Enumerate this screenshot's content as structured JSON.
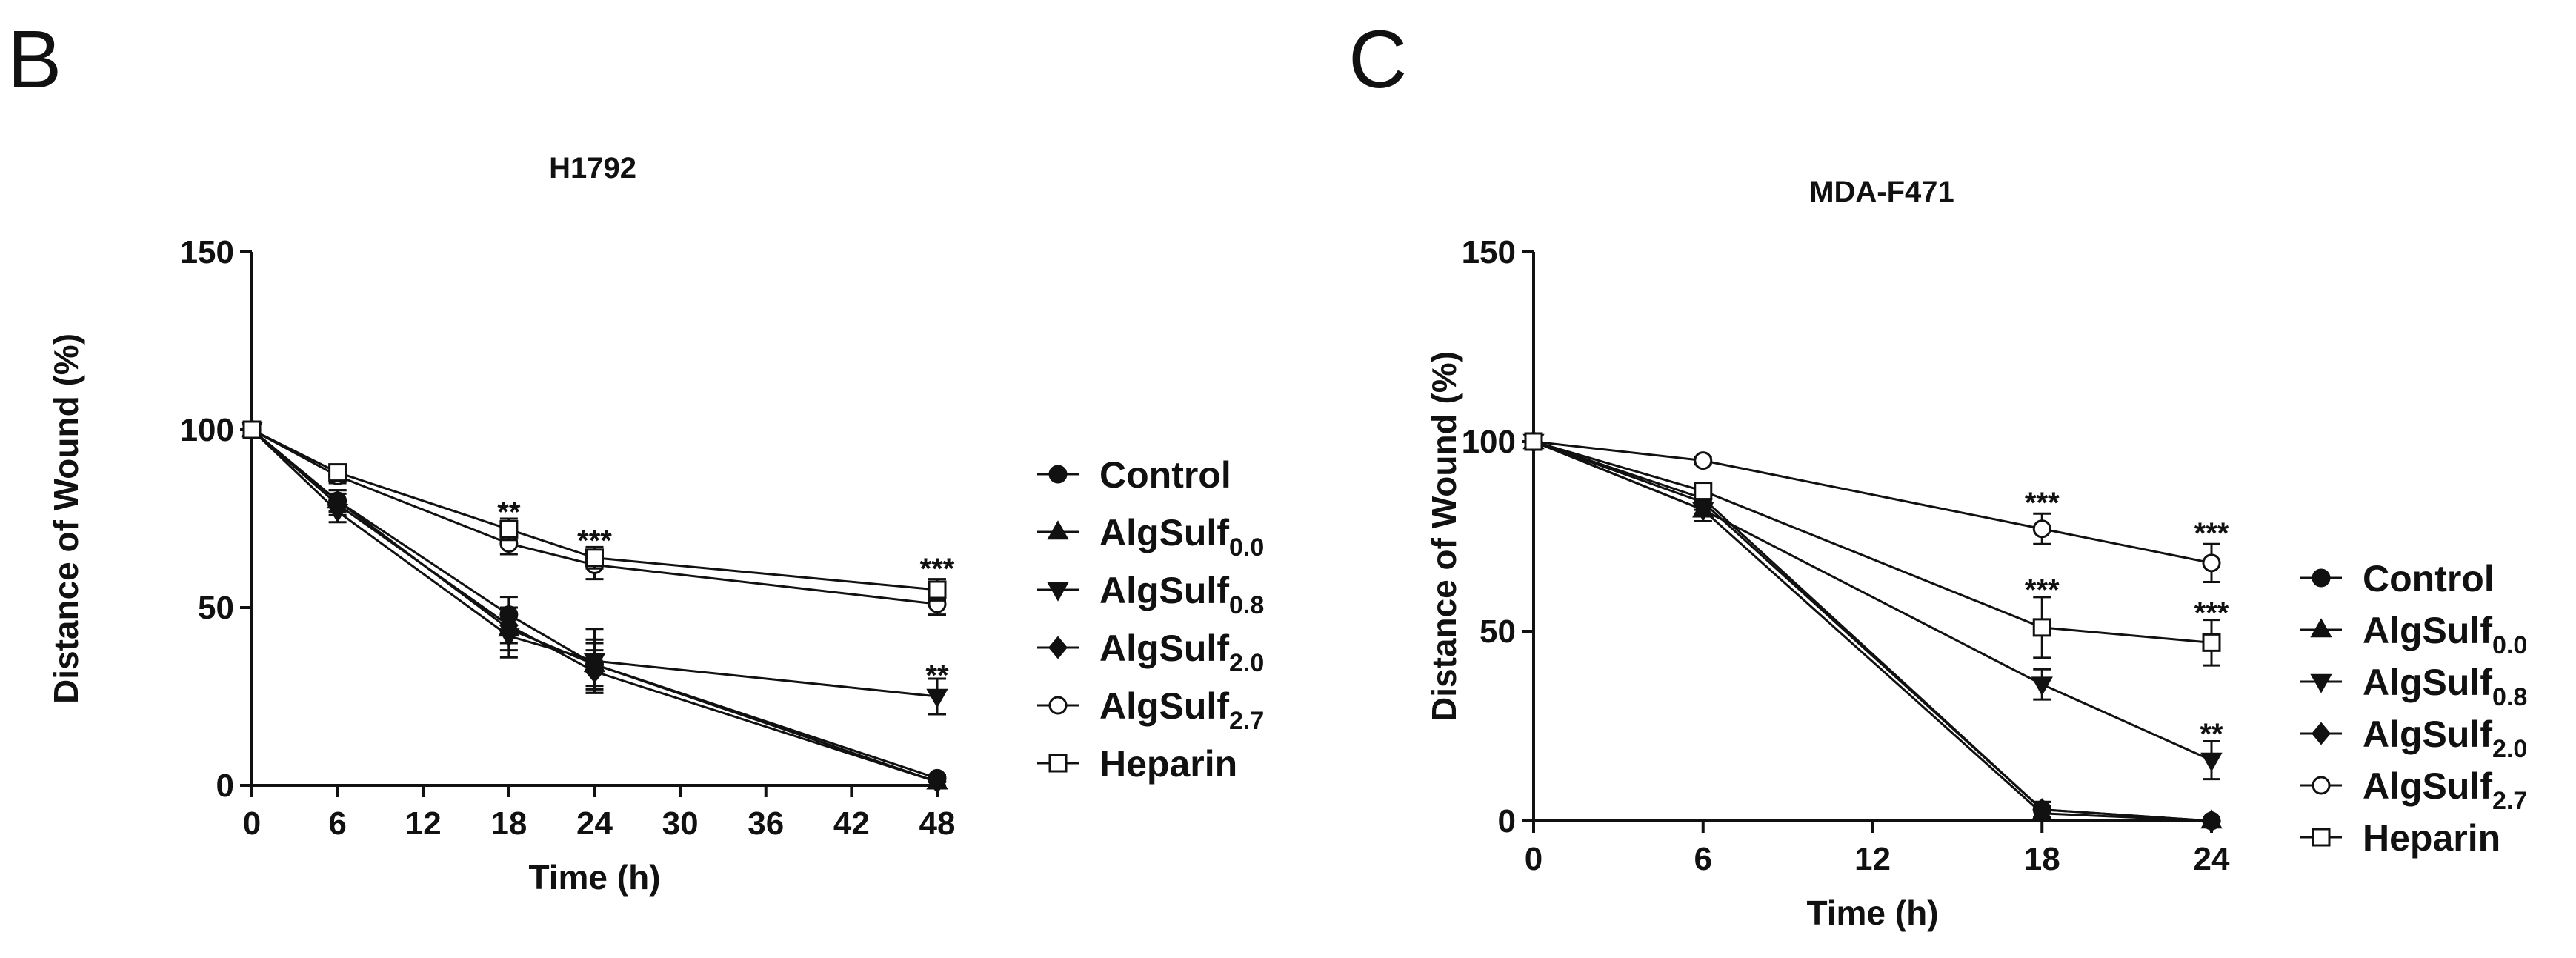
{
  "panel_labels": [
    "B",
    "C"
  ],
  "legend_shapes": {
    "Control": "filled-circle",
    "AlgSulf0.0": "filled-triangle-up",
    "AlgSulf0.8": "filled-triangle-down",
    "AlgSulf2.0": "filled-diamond",
    "AlgSulf2.7": "open-circle",
    "Heparin": "open-square"
  },
  "chart_data": [
    {
      "panel": "B",
      "type": "line",
      "title": "H1792",
      "xlabel": "Time (h)",
      "ylabel": "Distance of Wound (%)",
      "xlim": [
        0,
        48
      ],
      "ylim": [
        0,
        150
      ],
      "xticks": [
        0,
        6,
        12,
        18,
        24,
        30,
        36,
        42,
        48
      ],
      "yticks": [
        0,
        50,
        100,
        150
      ],
      "x": [
        0,
        6,
        18,
        24,
        48
      ],
      "series": [
        {
          "name": "Control",
          "base": "Control",
          "sub": "",
          "marker": "filled-circle",
          "values": [
            100,
            80,
            48,
            34,
            2
          ],
          "err": [
            0,
            3,
            5,
            6,
            1
          ]
        },
        {
          "name": "AlgSulf0.0",
          "base": "AlgSulf",
          "sub": "0.0",
          "marker": "filled-triangle-up",
          "values": [
            100,
            80,
            44,
            34,
            1
          ],
          "err": [
            0,
            3,
            6,
            7,
            1
          ]
        },
        {
          "name": "AlgSulf0.8",
          "base": "AlgSulf",
          "sub": "0.8",
          "marker": "filled-triangle-down",
          "values": [
            100,
            77,
            42,
            35,
            25
          ],
          "err": [
            0,
            3,
            6,
            9,
            5
          ]
        },
        {
          "name": "AlgSulf2.0",
          "base": "AlgSulf",
          "sub": "2.0",
          "marker": "filled-diamond",
          "values": [
            100,
            79,
            45,
            32,
            1
          ],
          "err": [
            0,
            3,
            5,
            6,
            1
          ]
        },
        {
          "name": "AlgSulf2.7",
          "base": "AlgSulf",
          "sub": "2.7",
          "marker": "open-circle",
          "values": [
            100,
            87,
            68,
            62,
            51
          ],
          "err": [
            0,
            2,
            3,
            4,
            3
          ]
        },
        {
          "name": "Heparin",
          "base": "Heparin",
          "sub": "",
          "marker": "open-square",
          "values": [
            100,
            88,
            72,
            64,
            55
          ],
          "err": [
            0,
            2,
            3,
            3,
            3
          ]
        }
      ],
      "annotations": [
        {
          "x": 18,
          "y": 77,
          "text": "**"
        },
        {
          "x": 24,
          "y": 69,
          "text": "***"
        },
        {
          "x": 48,
          "y": 61,
          "text": "***"
        },
        {
          "x": 48,
          "y": 31,
          "text": "**"
        }
      ]
    },
    {
      "panel": "C",
      "type": "line",
      "title": "MDA-F471",
      "xlabel": "Time (h)",
      "ylabel": "Distance of Wound (%)",
      "xlim": [
        0,
        24
      ],
      "ylim": [
        0,
        150
      ],
      "xticks": [
        0,
        6,
        12,
        18,
        24
      ],
      "yticks": [
        0,
        50,
        100,
        150
      ],
      "x": [
        0,
        6,
        18,
        24
      ],
      "series": [
        {
          "name": "Control",
          "base": "Control",
          "sub": "",
          "marker": "filled-circle",
          "values": [
            100,
            85,
            3,
            0
          ],
          "err": [
            0,
            3,
            2,
            0
          ]
        },
        {
          "name": "AlgSulf0.0",
          "base": "AlgSulf",
          "sub": "0.0",
          "marker": "filled-triangle-up",
          "values": [
            100,
            82,
            2,
            0
          ],
          "err": [
            0,
            3,
            2,
            0
          ]
        },
        {
          "name": "AlgSulf0.8",
          "base": "AlgSulf",
          "sub": "0.8",
          "marker": "filled-triangle-down",
          "values": [
            100,
            82,
            36,
            16
          ],
          "err": [
            0,
            3,
            4,
            5
          ]
        },
        {
          "name": "AlgSulf2.0",
          "base": "AlgSulf",
          "sub": "2.0",
          "marker": "filled-diamond",
          "values": [
            100,
            84,
            3,
            0
          ],
          "err": [
            0,
            3,
            2,
            0
          ]
        },
        {
          "name": "AlgSulf2.7",
          "base": "AlgSulf",
          "sub": "2.7",
          "marker": "open-circle",
          "values": [
            100,
            95,
            77,
            68
          ],
          "err": [
            0,
            1,
            4,
            5
          ]
        },
        {
          "name": "Heparin",
          "base": "Heparin",
          "sub": "",
          "marker": "open-square",
          "values": [
            100,
            87,
            51,
            47
          ],
          "err": [
            0,
            2,
            8,
            6
          ]
        }
      ],
      "annotations": [
        {
          "x": 18,
          "y": 84,
          "text": "***"
        },
        {
          "x": 24,
          "y": 76,
          "text": "***"
        },
        {
          "x": 18,
          "y": 61,
          "text": "***"
        },
        {
          "x": 24,
          "y": 55,
          "text": "***"
        },
        {
          "x": 24,
          "y": 23,
          "text": "**"
        }
      ]
    }
  ]
}
